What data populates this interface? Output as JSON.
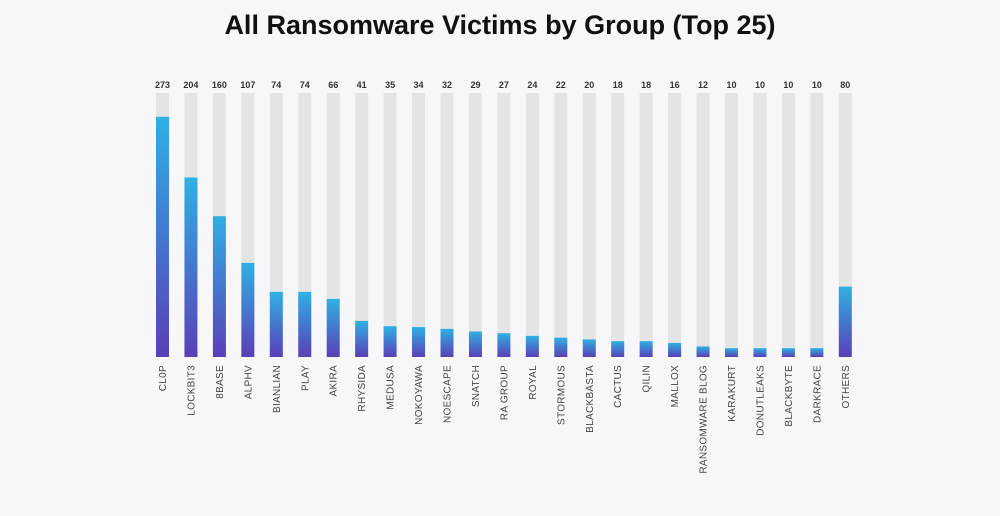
{
  "chart_data": {
    "type": "bar",
    "title": "All Ransomware Victims by Group (Top 25)",
    "xlabel": "",
    "ylabel": "",
    "categories": [
      "CL0P",
      "LOCKBIT3",
      "8BASE",
      "ALPHV",
      "BIANLIAN",
      "PLAY",
      "AKIRA",
      "RHYSIDA",
      "MEDUSA",
      "NOKOYAWA",
      "NOESCAPE",
      "SNATCH",
      "RA GROUP",
      "ROYAL",
      "STORMOUS",
      "BLACKBASTA",
      "CACTUS",
      "QILIN",
      "MALLOX",
      "RANSOMWARE BLOG",
      "KARAKURT",
      "DONUTLEAKS",
      "BLACKBYTE",
      "DARKRACE",
      "OTHERS"
    ],
    "values": [
      273,
      204,
      160,
      107,
      74,
      74,
      66,
      41,
      35,
      34,
      32,
      29,
      27,
      24,
      22,
      20,
      18,
      18,
      16,
      12,
      10,
      10,
      10,
      10,
      80
    ],
    "ylim": [
      0,
      300
    ],
    "grid": false,
    "legend": "none",
    "colors": {
      "bar_top": "#2fb0e4",
      "bar_bottom": "#5a3fb8",
      "track": "#e4e4e4"
    }
  }
}
